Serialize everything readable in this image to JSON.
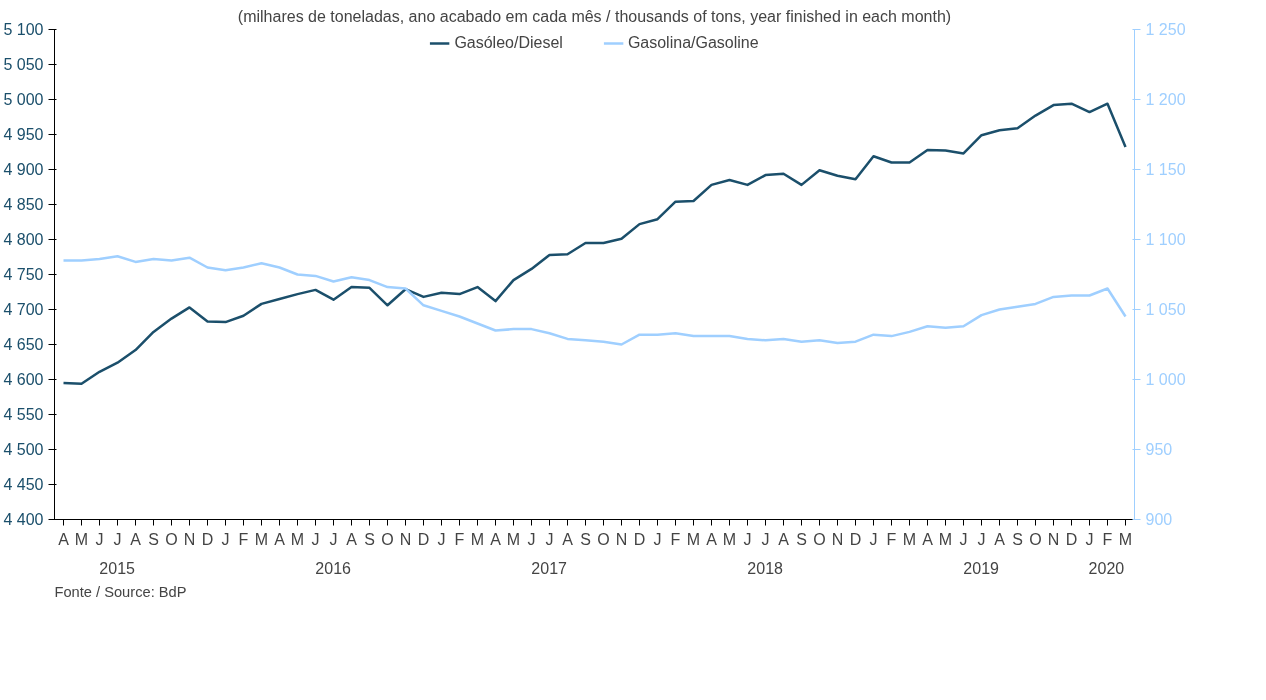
{
  "chart_data": {
    "type": "line",
    "title": "(milhares de toneladas, ano acabado em cada mês / thousands of tons, year finished in each month)",
    "annotations": [
      "Fonte / Source: BdP"
    ],
    "categories": [
      "A",
      "M",
      "J",
      "J",
      "A",
      "S",
      "O",
      "N",
      "D",
      "J",
      "F",
      "M",
      "A",
      "M",
      "J",
      "J",
      "A",
      "S",
      "O",
      "N",
      "D",
      "J",
      "F",
      "M",
      "A",
      "M",
      "J",
      "J",
      "A",
      "S",
      "O",
      "N",
      "D",
      "J",
      "F",
      "M",
      "A",
      "M",
      "J",
      "J",
      "A",
      "S",
      "O",
      "N",
      "D",
      "J",
      "F",
      "M",
      "A",
      "M",
      "J",
      "J",
      "A",
      "S",
      "O",
      "N",
      "D",
      "J",
      "F",
      "M"
    ],
    "x2lim": [
      2015.21,
      2020.21
    ],
    "x2ticks": [
      {
        "value": 2015.5,
        "label": "2015"
      },
      {
        "value": 2016.5,
        "label": "2016"
      },
      {
        "value": 2017.5,
        "label": "2017"
      },
      {
        "value": 2018.5,
        "label": "2018"
      },
      {
        "value": 2019.5,
        "label": "2019"
      },
      {
        "value": 2020.08,
        "label": "2020"
      }
    ],
    "ylim": [
      4400,
      5100
    ],
    "yticks": [
      {
        "value": 4400,
        "label": "4 400"
      },
      {
        "value": 4450,
        "label": "4 450"
      },
      {
        "value": 4500,
        "label": "4 500"
      },
      {
        "value": 4550,
        "label": "4 550"
      },
      {
        "value": 4600,
        "label": "4 600"
      },
      {
        "value": 4650,
        "label": "4 650"
      },
      {
        "value": 4700,
        "label": "4 700"
      },
      {
        "value": 4750,
        "label": "4 750"
      },
      {
        "value": 4800,
        "label": "4 800"
      },
      {
        "value": 4850,
        "label": "4 850"
      },
      {
        "value": 4900,
        "label": "4 900"
      },
      {
        "value": 4950,
        "label": "4 950"
      },
      {
        "value": 5000,
        "label": "5 000"
      },
      {
        "value": 5050,
        "label": "5 050"
      },
      {
        "value": 5100,
        "label": "5 100"
      }
    ],
    "y2lim": [
      900,
      1250
    ],
    "y2ticks": [
      900,
      950,
      {
        "value": 1000,
        "label": "1 000"
      },
      {
        "value": 1050,
        "label": "1 050"
      },
      {
        "value": 1100,
        "label": "1 100"
      },
      {
        "value": 1150,
        "label": "1 150"
      },
      {
        "value": 1200,
        "label": "1 200"
      },
      {
        "value": 1250,
        "label": "1 250"
      }
    ],
    "legend": "top",
    "grid": false,
    "series": [
      {
        "name": "Gasóleo/Diesel",
        "color": "#1b4f6b",
        "values": [
          4595,
          4594,
          4611,
          4624,
          4642,
          4668,
          4687,
          4703,
          4683,
          4682,
          4691,
          4708,
          4715,
          4722,
          4728,
          4714,
          4732,
          4731,
          4706,
          4729,
          4718,
          4724,
          4722,
          4732,
          4712,
          4742,
          4758,
          4778,
          4779,
          4795,
          4795,
          4801,
          4822,
          4829,
          4854,
          4855,
          4878,
          4885,
          4878,
          4892,
          4894,
          4878,
          4899,
          4891,
          4886,
          4919,
          4910,
          4910,
          4928,
          4927,
          4923,
          4949,
          4956,
          4959,
          4977,
          4992,
          4994,
          4982,
          4994,
          4932
        ]
      },
      {
        "name": "Gasolina/Gasoline",
        "color": "#9fcfff",
        "axis": "y2",
        "values": [
          1085,
          1085,
          1086,
          1088,
          1084,
          1086,
          1085,
          1087,
          1080,
          1078,
          1080,
          1083,
          1080,
          1075,
          1074,
          1070,
          1073,
          1071,
          1066,
          1065,
          1053,
          1049,
          1045,
          1040,
          1035,
          1036,
          1036,
          1033,
          1029,
          1028,
          1027,
          1025,
          1032,
          1032,
          1033,
          1031,
          1031,
          1031,
          1029,
          1028,
          1029,
          1027,
          1028,
          1026,
          1027,
          1032,
          1031,
          1034,
          1038,
          1037,
          1038,
          1046,
          1050,
          1052,
          1054,
          1059,
          1060,
          1060,
          1065,
          1045
        ]
      }
    ]
  }
}
